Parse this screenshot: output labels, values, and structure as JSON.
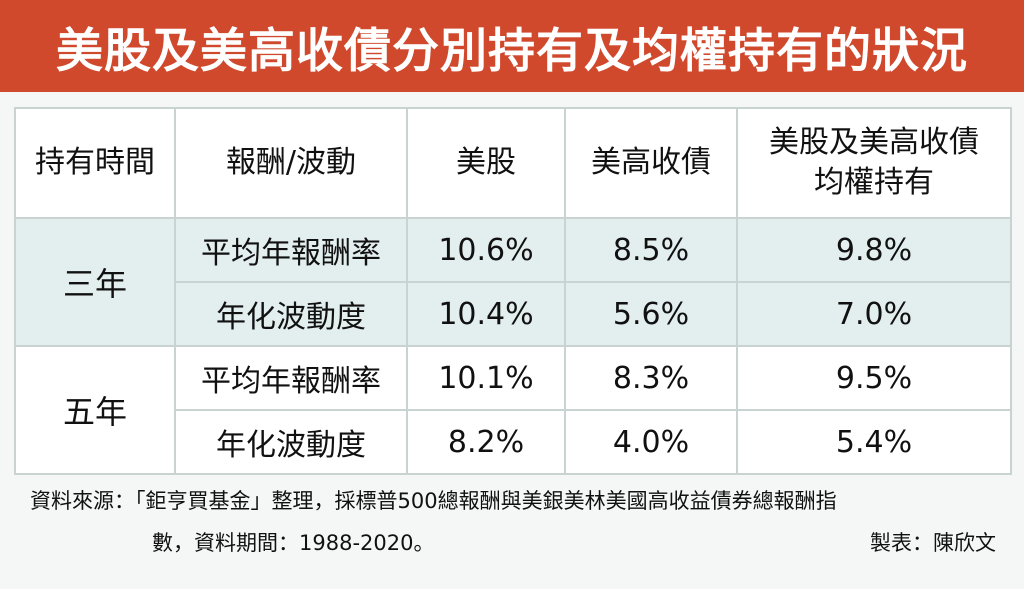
{
  "title": "美股及美高收債分別持有及均權持有的狀況",
  "headers": {
    "holding_period": "持有時間",
    "metric": "報酬/波動",
    "us_stocks": "美股",
    "us_high_yield": "美高收債",
    "equal_weight_line1": "美股及美高收債",
    "equal_weight_line2": "均權持有"
  },
  "groups": [
    {
      "period": "三年",
      "rows": [
        {
          "metric": "平均年報酬率",
          "us_stocks": "10.6%",
          "us_high_yield": "8.5%",
          "equal_weight": "9.8%"
        },
        {
          "metric": "年化波動度",
          "us_stocks": "10.4%",
          "us_high_yield": "5.6%",
          "equal_weight": "7.0%"
        }
      ]
    },
    {
      "period": "五年",
      "rows": [
        {
          "metric": "平均年報酬率",
          "us_stocks": "10.1%",
          "us_high_yield": "8.3%",
          "equal_weight": "9.5%"
        },
        {
          "metric": "年化波動度",
          "us_stocks": "8.2%",
          "us_high_yield": "4.0%",
          "equal_weight": "5.4%"
        }
      ]
    }
  ],
  "source_line1": "資料來源：「鉅亨買基金」整理，採標普500總報酬與美銀美林美國高收益債券總報酬指",
  "source_line2": "數，資料期間：1988-2020。",
  "credit": "製表：陳欣文",
  "colors": {
    "banner": "#d0492d",
    "band_row": "#e3eeef",
    "grid": "#c9d3d1"
  }
}
